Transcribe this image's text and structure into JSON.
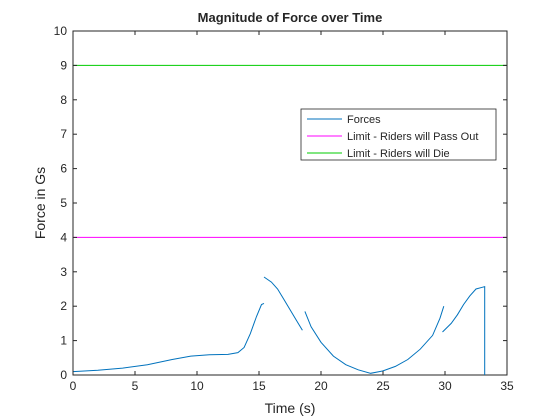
{
  "chart_data": {
    "type": "line",
    "title": "Magnitude of Force over Time",
    "xlabel": "Time (s)",
    "ylabel": "Force in Gs",
    "xlim": [
      0,
      35
    ],
    "ylim": [
      0,
      10
    ],
    "xticks": [
      0,
      5,
      10,
      15,
      20,
      25,
      30,
      35
    ],
    "yticks": [
      0,
      1,
      2,
      3,
      4,
      5,
      6,
      7,
      8,
      9,
      10
    ],
    "grid": false,
    "legend_placement": "top-right",
    "series": [
      {
        "name": "Forces",
        "color": "#0072BD",
        "segments": [
          [
            [
              0,
              0.1
            ],
            [
              2,
              0.14
            ],
            [
              4,
              0.2
            ],
            [
              6,
              0.3
            ],
            [
              8,
              0.45
            ],
            [
              9.5,
              0.55
            ],
            [
              11,
              0.59
            ],
            [
              12.5,
              0.6
            ],
            [
              13.3,
              0.65
            ],
            [
              13.8,
              0.8
            ],
            [
              14.3,
              1.2
            ],
            [
              14.8,
              1.7
            ],
            [
              15.2,
              2.05
            ],
            [
              15.4,
              2.08
            ]
          ],
          [
            [
              15.4,
              2.85
            ],
            [
              16,
              2.7
            ],
            [
              16.5,
              2.5
            ],
            [
              17,
              2.2
            ],
            [
              17.5,
              1.9
            ],
            [
              18,
              1.6
            ],
            [
              18.5,
              1.3
            ]
          ],
          [
            [
              18.7,
              1.85
            ],
            [
              19.2,
              1.4
            ],
            [
              20,
              0.95
            ],
            [
              21,
              0.55
            ],
            [
              22,
              0.3
            ],
            [
              23,
              0.15
            ],
            [
              24,
              0.05
            ],
            [
              25,
              0.12
            ],
            [
              26,
              0.25
            ],
            [
              27,
              0.45
            ],
            [
              28,
              0.75
            ],
            [
              29,
              1.15
            ],
            [
              29.6,
              1.65
            ],
            [
              29.9,
              2.0
            ]
          ],
          [
            [
              29.8,
              1.25
            ],
            [
              30.5,
              1.5
            ],
            [
              31,
              1.75
            ],
            [
              31.5,
              2.05
            ],
            [
              32,
              2.3
            ],
            [
              32.5,
              2.5
            ],
            [
              33,
              2.55
            ],
            [
              33.2,
              2.57
            ],
            [
              33.2,
              0
            ]
          ]
        ]
      },
      {
        "name": "Limit - Riders will Pass Out",
        "color": "#FF00FF",
        "segments": [
          [
            [
              0,
              4
            ],
            [
              35,
              4
            ]
          ]
        ]
      },
      {
        "name": "Limit - Riders will Die",
        "color": "#00CC00",
        "segments": [
          [
            [
              0,
              9
            ],
            [
              35,
              9
            ]
          ]
        ]
      }
    ]
  }
}
